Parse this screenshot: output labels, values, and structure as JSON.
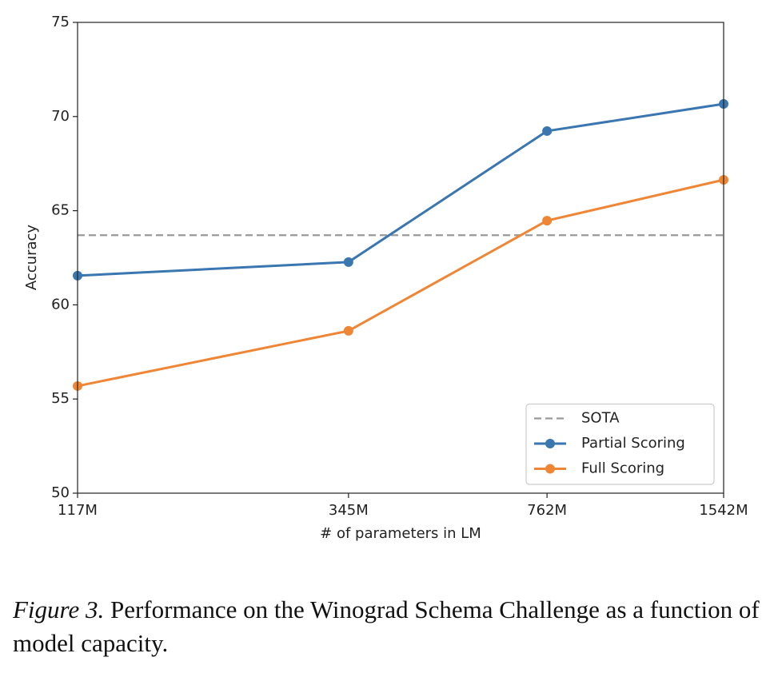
{
  "chart_data": {
    "type": "line",
    "x": [
      117,
      345,
      762,
      1542
    ],
    "xscale": "log",
    "xlim": [
      117,
      1542
    ],
    "xticks": [
      {
        "value": 117,
        "label": "117M"
      },
      {
        "value": 345,
        "label": "345M"
      },
      {
        "value": 762,
        "label": "762M"
      },
      {
        "value": 1542,
        "label": "1542M"
      }
    ],
    "ylim": [
      50,
      75
    ],
    "yticks": [
      50,
      55,
      60,
      65,
      70,
      75
    ],
    "xlabel": "# of parameters in LM",
    "ylabel": "Accuracy",
    "reference": {
      "name": "SOTA",
      "value": 63.7,
      "color": "#999999"
    },
    "series": [
      {
        "name": "Partial Scoring",
        "color": "#3a76af",
        "values": [
          61.55,
          62.27,
          69.23,
          70.67
        ]
      },
      {
        "name": "Full Scoring",
        "color": "#ef8636",
        "values": [
          55.69,
          58.62,
          64.47,
          66.64
        ]
      }
    ],
    "legend": "lower right",
    "caption_label": "Figure 3.",
    "caption": "Performance on the Winograd Schema Challenge as a function of model capacity."
  }
}
